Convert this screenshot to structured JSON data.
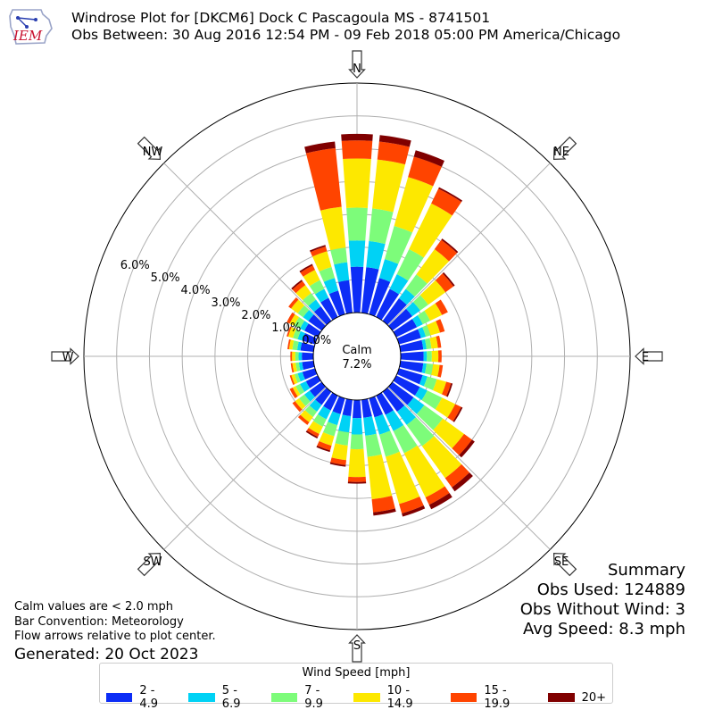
{
  "header": {
    "title_line1": "Windrose Plot for [DKCM6] Dock C  Pascagoula  MS - 8741501",
    "title_line2": "Obs Between: 30 Aug 2016 12:54 PM - 09 Feb 2018 05:00 PM America/Chicago",
    "logo_text": "IEM"
  },
  "summary": {
    "title": "Summary",
    "obs_used": "Obs Used: 124889",
    "obs_without_wind": "Obs Without Wind: 3",
    "avg_speed": "Avg Speed: 8.3 mph"
  },
  "notes": {
    "calm_note": "Calm values are < 2.0 mph",
    "bar_convention": "Bar Convention: Meteorology",
    "flow_arrows": "Flow arrows relative to plot center.",
    "generated": "Generated: 20 Oct 2023"
  },
  "chart_data": {
    "type": "windrose",
    "radial_unit": "%",
    "radial_ticks": [
      "0.0%",
      "1.0%",
      "2.0%",
      "3.0%",
      "4.0%",
      "5.0%",
      "6.0%"
    ],
    "rmax": 7.0,
    "calm": {
      "label": "Calm",
      "value": "7.2%"
    },
    "compass_labels": [
      "N",
      "NE",
      "E",
      "SE",
      "S",
      "SW",
      "W",
      "NW"
    ],
    "legend": {
      "title": "Wind Speed [mph]",
      "bins": [
        {
          "label": "2 - 4.9",
          "color": "#0c2df6"
        },
        {
          "label": "5 - 6.9",
          "color": "#00d2f5"
        },
        {
          "label": "7 - 9.9",
          "color": "#7dfc7a"
        },
        {
          "label": "10 - 14.9",
          "color": "#fde800"
        },
        {
          "label": "15 - 19.9",
          "color": "#ff4400"
        },
        {
          "label": "20+",
          "color": "#800000"
        }
      ]
    },
    "directions_deg": [
      0,
      10,
      20,
      30,
      40,
      50,
      60,
      70,
      80,
      90,
      100,
      110,
      120,
      130,
      140,
      150,
      160,
      170,
      180,
      190,
      200,
      210,
      220,
      230,
      240,
      250,
      260,
      270,
      280,
      290,
      300,
      310,
      320,
      330,
      340,
      350
    ],
    "cumulative_percent": [
      [
        1.4,
        1.4,
        1.15,
        0.95,
        0.85,
        0.75,
        0.7,
        0.7,
        0.7,
        0.7,
        0.7,
        0.75,
        0.8,
        0.8,
        0.75,
        0.65,
        0.6,
        0.55,
        0.55,
        0.5,
        0.5,
        0.5,
        0.5,
        0.45,
        0.4,
        0.4,
        0.35,
        0.35,
        0.4,
        0.4,
        0.45,
        0.5,
        0.55,
        0.65,
        0.75,
        1.0
      ],
      [
        2.2,
        2.2,
        1.75,
        1.45,
        1.2,
        1.05,
        0.9,
        0.85,
        0.8,
        0.8,
        0.8,
        0.9,
        1.05,
        1.2,
        1.25,
        1.2,
        1.15,
        1.1,
        1.05,
        1.0,
        0.85,
        0.8,
        0.75,
        0.65,
        0.6,
        0.55,
        0.45,
        0.45,
        0.5,
        0.55,
        0.6,
        0.7,
        0.8,
        0.95,
        1.15,
        1.55
      ],
      [
        3.2,
        3.2,
        2.8,
        2.3,
        1.75,
        1.35,
        1.15,
        1.0,
        0.95,
        0.95,
        1.0,
        1.2,
        1.55,
        1.9,
        2.05,
        1.95,
        1.85,
        1.75,
        1.5,
        1.4,
        1.2,
        1.05,
        0.95,
        0.85,
        0.75,
        0.65,
        0.55,
        0.55,
        0.65,
        0.7,
        0.8,
        0.9,
        1.05,
        1.25,
        1.5,
        2.0
      ],
      [
        4.7,
        4.7,
        4.35,
        3.85,
        2.7,
        2.0,
        1.55,
        1.3,
        1.15,
        1.15,
        1.2,
        1.5,
        2.0,
        2.7,
        3.25,
        3.45,
        3.35,
        3.05,
        2.35,
        1.85,
        1.5,
        1.3,
        1.15,
        1.0,
        0.85,
        0.75,
        0.65,
        0.65,
        0.75,
        0.85,
        0.95,
        1.15,
        1.35,
        1.6,
        2.0,
        3.25
      ],
      [
        5.25,
        5.25,
        5.0,
        4.35,
        3.05,
        2.3,
        1.75,
        1.45,
        1.25,
        1.25,
        1.3,
        1.65,
        2.2,
        3.0,
        3.6,
        3.7,
        3.65,
        3.45,
        2.5,
        2.0,
        1.65,
        1.4,
        1.25,
        1.1,
        0.95,
        0.8,
        0.7,
        0.7,
        0.8,
        0.9,
        1.05,
        1.25,
        1.5,
        1.75,
        2.15,
        5.05
      ],
      [
        5.45,
        5.45,
        5.2,
        4.4,
        3.1,
        2.35,
        1.75,
        1.45,
        1.25,
        1.25,
        1.3,
        1.7,
        2.25,
        3.1,
        3.75,
        3.85,
        3.75,
        3.55,
        2.55,
        2.05,
        1.7,
        1.45,
        1.25,
        1.1,
        0.95,
        0.8,
        0.7,
        0.7,
        0.8,
        0.9,
        1.05,
        1.25,
        1.55,
        1.8,
        2.2,
        5.25
      ]
    ]
  }
}
